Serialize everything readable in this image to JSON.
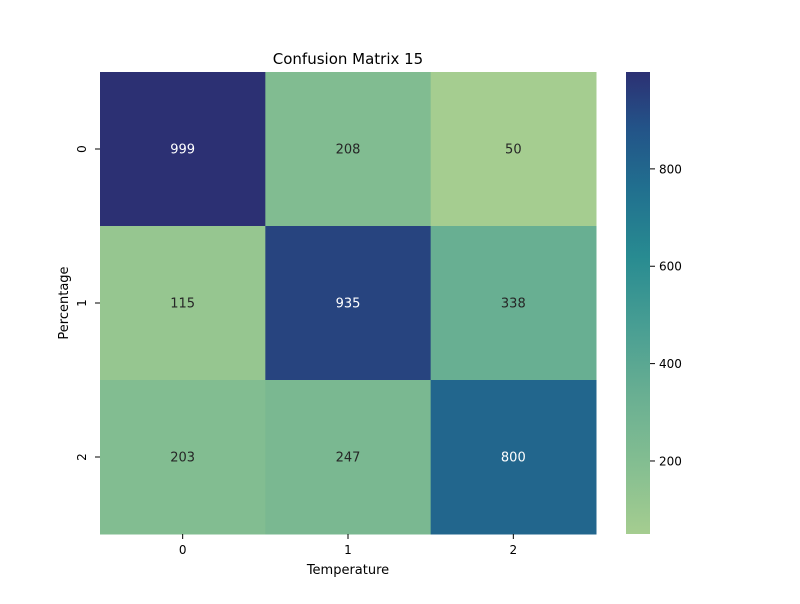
{
  "chart_data": {
    "type": "heatmap",
    "title": "Confusion Matrix 15",
    "xlabel": "Temperature",
    "ylabel": "Percentage",
    "x_categories": [
      "0",
      "1",
      "2"
    ],
    "y_categories": [
      "0",
      "1",
      "2"
    ],
    "values": [
      [
        999,
        208,
        50
      ],
      [
        115,
        935,
        338
      ],
      [
        203,
        247,
        800
      ]
    ],
    "colormap": "crest",
    "value_range": [
      50,
      999
    ],
    "colorbar": {
      "ticks": [
        200,
        400,
        600,
        800
      ],
      "tick_labels": [
        "200",
        "400",
        "600",
        "800"
      ]
    },
    "colors": {
      "low": "#a5cf8f",
      "high": "#2c3172",
      "text_dark": "#262626",
      "text_light": "#ffffff"
    }
  }
}
